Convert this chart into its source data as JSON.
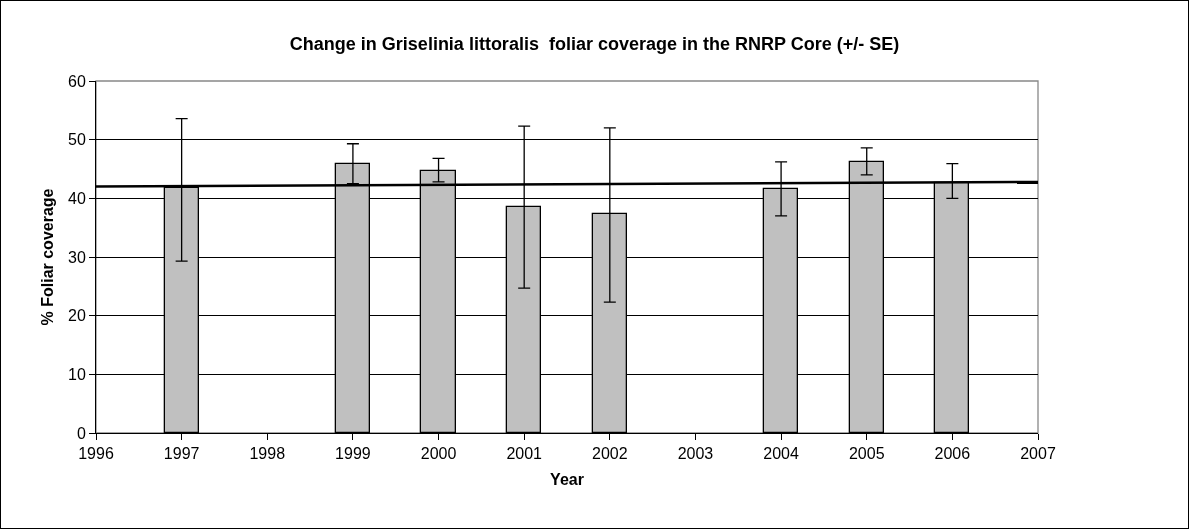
{
  "chart_data": {
    "type": "bar",
    "title": "Change in Griselinia littoralis  foliar coverage in the RNRP Core (+/- SE)",
    "xlabel": "Year",
    "ylabel": "% Foliar coverage",
    "x": [
      1997,
      1999,
      2000,
      2001,
      2002,
      2004,
      2005,
      2006
    ],
    "series": [
      {
        "color": "#c0c0c0",
        "values": [
          41.7,
          45.9,
          44.6,
          38.5,
          37.3,
          41.6,
          46.2,
          42.6
        ],
        "errors": [
          [
            29.3,
            53.6
          ],
          [
            42.5,
            49.3
          ],
          [
            42.8,
            46.8
          ],
          [
            24.7,
            52.3
          ],
          [
            22.3,
            52.0
          ],
          [
            37.0,
            46.2
          ],
          [
            44.0,
            48.6
          ],
          [
            40.0,
            45.9
          ]
        ]
      },
      {
        "type": "line",
        "color": "#000000",
        "x": [
          1996,
          2007
        ],
        "values": [
          42.0,
          42.8
        ],
        "line_style": "solid"
      }
    ],
    "xlim": [
      1996,
      2007
    ],
    "xticks": [
      1996,
      1997,
      1998,
      1999,
      2000,
      2001,
      2002,
      2003,
      2004,
      2005,
      2006,
      2007
    ],
    "ylim": [
      0,
      60
    ],
    "yticks": [
      0,
      10,
      20,
      30,
      40,
      50,
      60
    ],
    "grid": "y",
    "marker": "none"
  }
}
